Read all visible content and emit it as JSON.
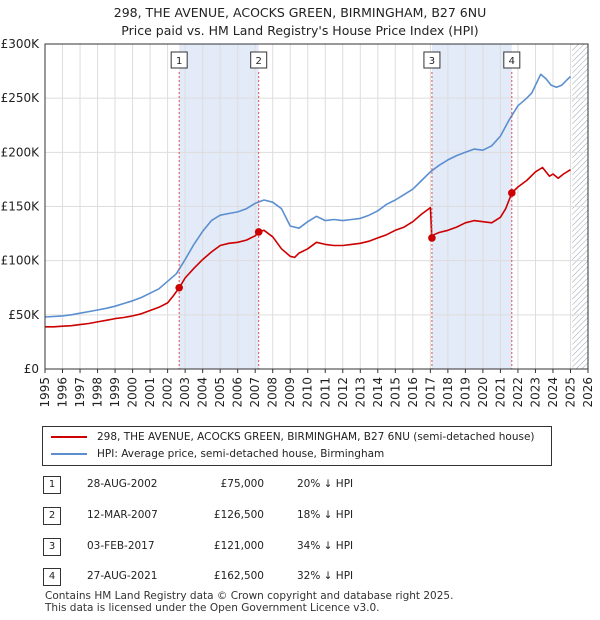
{
  "title": {
    "line1": "298, THE AVENUE, ACOCKS GREEN, BIRMINGHAM, B27 6NU",
    "line2": "Price paid vs. HM Land Registry's House Price Index (HPI)"
  },
  "colors": {
    "property": "#cc0000",
    "hpi": "#5b8fd0",
    "shade": "#e3eaf8",
    "grid": "#dddddd",
    "marker_line": "#e05050"
  },
  "legend": {
    "property_label": "298, THE AVENUE, ACOCKS GREEN, BIRMINGHAM, B27 6NU (semi-detached house)",
    "hpi_label": "HPI: Average price, semi-detached house, Birmingham"
  },
  "transactions": [
    {
      "num": "1",
      "date": "28-AUG-2002",
      "price": "£75,000",
      "hpi": "20% ↓ HPI"
    },
    {
      "num": "2",
      "date": "12-MAR-2007",
      "price": "£126,500",
      "hpi": "18% ↓ HPI"
    },
    {
      "num": "3",
      "date": "03-FEB-2017",
      "price": "£121,000",
      "hpi": "34% ↓ HPI"
    },
    {
      "num": "4",
      "date": "27-AUG-2021",
      "price": "£162,500",
      "hpi": "32% ↓ HPI"
    }
  ],
  "footer": {
    "line1": "Contains HM Land Registry data © Crown copyright and database right 2025.",
    "line2": "This data is licensed under the Open Government Licence v3.0."
  },
  "chart_data": {
    "type": "line",
    "title": "298, THE AVENUE, ACOCKS GREEN, BIRMINGHAM, B27 6NU — Price paid vs. HM Land Registry's House Price Index (HPI)",
    "xlabel": "",
    "ylabel": "",
    "xlim": [
      1995,
      2026
    ],
    "ylim": [
      0,
      300000
    ],
    "x_ticks": [
      "1995",
      "1996",
      "1997",
      "1998",
      "1999",
      "2000",
      "2001",
      "2002",
      "2003",
      "2004",
      "2005",
      "2006",
      "2007",
      "2008",
      "2009",
      "2010",
      "2011",
      "2012",
      "2013",
      "2014",
      "2015",
      "2016",
      "2017",
      "2018",
      "2019",
      "2020",
      "2021",
      "2022",
      "2023",
      "2024",
      "2025",
      "2026"
    ],
    "y_ticks": [
      {
        "value": 0,
        "label": "£0"
      },
      {
        "value": 50000,
        "label": "£50K"
      },
      {
        "value": 100000,
        "label": "£100K"
      },
      {
        "value": 150000,
        "label": "£150K"
      },
      {
        "value": 200000,
        "label": "£200K"
      },
      {
        "value": 250000,
        "label": "£250K"
      },
      {
        "value": 300000,
        "label": "£300K"
      }
    ],
    "shaded_periods": [
      [
        2002.66,
        2007.2
      ],
      [
        2017.09,
        2021.65
      ]
    ],
    "future_hatch_from": 2025.1,
    "sales": [
      {
        "label": "1",
        "x": 2002.66,
        "value": 75000
      },
      {
        "label": "2",
        "x": 2007.2,
        "value": 126500
      },
      {
        "label": "3",
        "x": 2017.09,
        "value": 121000
      },
      {
        "label": "4",
        "x": 2021.65,
        "value": 162500
      }
    ],
    "series": [
      {
        "name": "298, THE AVENUE, ACOCKS GREEN, BIRMINGHAM, B27 6NU (semi-detached house)",
        "x": [
          1995.0,
          1995.5,
          1996.0,
          1996.5,
          1997.0,
          1997.5,
          1998.0,
          1998.5,
          1999.0,
          1999.5,
          2000.0,
          2000.5,
          2001.0,
          2001.5,
          2002.0,
          2002.3,
          2002.66,
          2003.0,
          2003.5,
          2004.0,
          2004.5,
          2005.0,
          2005.5,
          2006.0,
          2006.5,
          2007.0,
          2007.2,
          2007.5,
          2008.0,
          2008.5,
          2009.0,
          2009.25,
          2009.5,
          2010.0,
          2010.5,
          2011.0,
          2011.5,
          2012.0,
          2012.5,
          2013.0,
          2013.5,
          2014.0,
          2014.5,
          2015.0,
          2015.5,
          2016.0,
          2016.5,
          2017.0,
          2017.09,
          2017.2,
          2017.5,
          2018.0,
          2018.5,
          2019.0,
          2019.5,
          2020.0,
          2020.5,
          2021.0,
          2021.3,
          2021.65,
          2022.0,
          2022.5,
          2023.0,
          2023.4,
          2023.8,
          2024.0,
          2024.3,
          2024.6,
          2025.0
        ],
        "values": [
          39000,
          39000,
          39500,
          40000,
          41000,
          42000,
          43500,
          45000,
          46500,
          47500,
          49000,
          51000,
          54000,
          57000,
          61000,
          67000,
          75000,
          84000,
          93000,
          101000,
          108000,
          114000,
          116000,
          117000,
          119000,
          123000,
          126500,
          128000,
          122000,
          111000,
          104000,
          103000,
          107000,
          111000,
          117000,
          115000,
          114000,
          114000,
          115000,
          116000,
          118000,
          121000,
          124000,
          128000,
          131000,
          136000,
          143000,
          149000,
          121000,
          124000,
          126000,
          128000,
          131000,
          135000,
          137000,
          136000,
          135000,
          140000,
          148000,
          162500,
          168000,
          174000,
          182000,
          186000,
          178000,
          180000,
          176000,
          180000,
          184000
        ]
      },
      {
        "name": "HPI: Average price, semi-detached house, Birmingham",
        "x": [
          1995.0,
          1995.5,
          1996.0,
          1996.5,
          1997.0,
          1997.5,
          1998.0,
          1998.5,
          1999.0,
          1999.5,
          2000.0,
          2000.5,
          2001.0,
          2001.5,
          2002.0,
          2002.5,
          2003.0,
          2003.5,
          2004.0,
          2004.5,
          2005.0,
          2005.5,
          2006.0,
          2006.5,
          2007.0,
          2007.5,
          2008.0,
          2008.5,
          2009.0,
          2009.5,
          2010.0,
          2010.5,
          2011.0,
          2011.5,
          2012.0,
          2012.5,
          2013.0,
          2013.5,
          2014.0,
          2014.5,
          2015.0,
          2015.5,
          2016.0,
          2016.5,
          2017.0,
          2017.5,
          2018.0,
          2018.5,
          2019.0,
          2019.5,
          2020.0,
          2020.5,
          2021.0,
          2021.5,
          2022.0,
          2022.5,
          2022.8,
          2023.0,
          2023.3,
          2023.6,
          2023.9,
          2024.2,
          2024.5,
          2024.8,
          2025.0
        ],
        "values": [
          48000,
          48500,
          49000,
          50000,
          51500,
          53000,
          54500,
          56000,
          58000,
          60500,
          63000,
          66000,
          70000,
          74000,
          81000,
          88000,
          101000,
          115000,
          127000,
          137000,
          142000,
          143500,
          145000,
          148000,
          153000,
          156000,
          154000,
          148000,
          132000,
          130000,
          136000,
          141000,
          137000,
          138000,
          137000,
          138000,
          139000,
          142000,
          146000,
          152000,
          156000,
          161000,
          166000,
          174000,
          182000,
          188000,
          193000,
          197000,
          200000,
          203000,
          202000,
          206000,
          215000,
          230000,
          243000,
          250000,
          255000,
          262000,
          272000,
          268000,
          262000,
          260000,
          262000,
          267000,
          270000
        ]
      }
    ]
  }
}
